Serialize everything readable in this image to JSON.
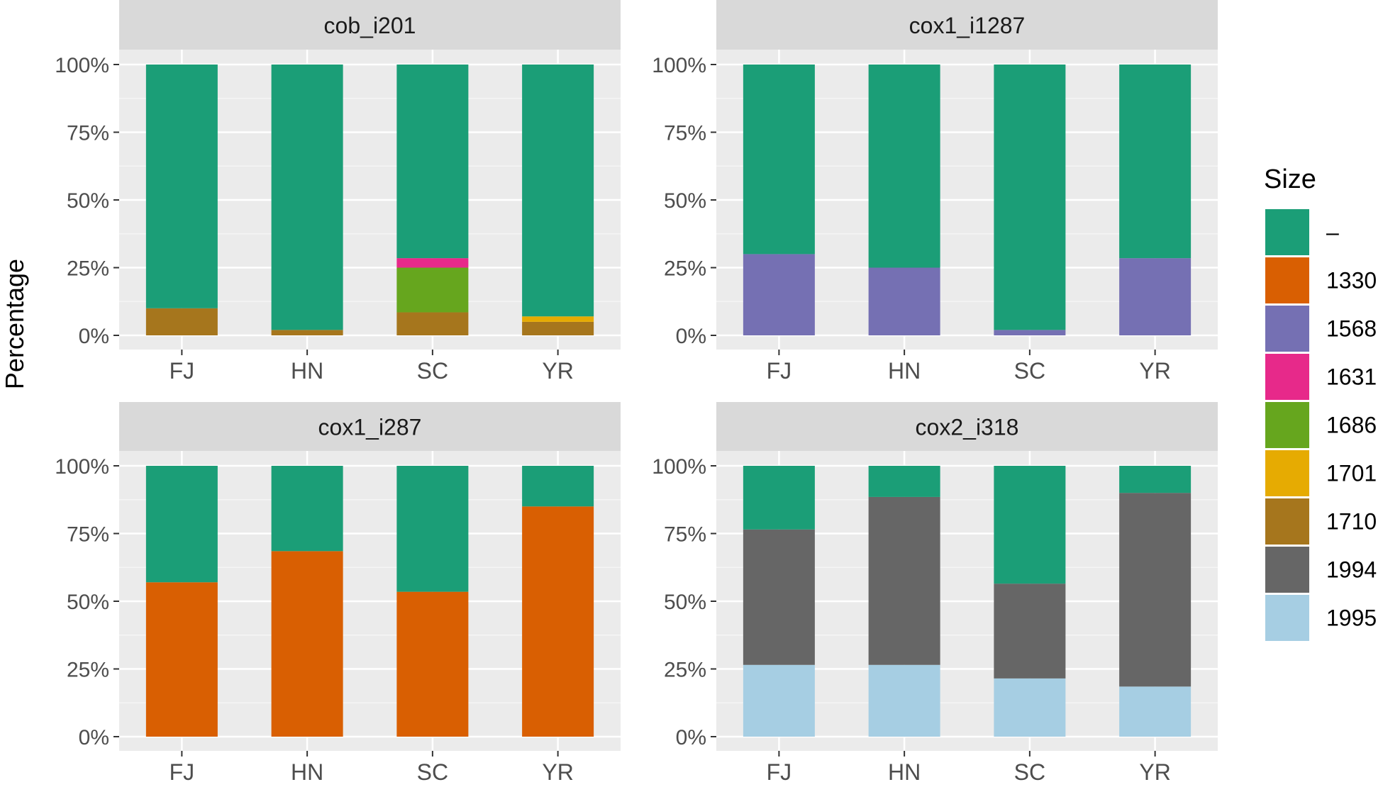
{
  "chart_data": {
    "type": "bar",
    "stacked": true,
    "ylabel": "Percentage",
    "y_ticks": [
      "0%",
      "25%",
      "50%",
      "75%",
      "100%"
    ],
    "y_tick_values": [
      0,
      25,
      50,
      75,
      100
    ],
    "ylim": [
      0,
      100
    ],
    "categories": [
      "FJ",
      "HN",
      "SC",
      "YR"
    ],
    "legend": {
      "title": "Size",
      "position": "right",
      "entries": [
        {
          "label": "–",
          "color": "#1b9e77"
        },
        {
          "label": "1330",
          "color": "#d95f02"
        },
        {
          "label": "1568",
          "color": "#7570b3"
        },
        {
          "label": "1631",
          "color": "#e7298a"
        },
        {
          "label": "1686",
          "color": "#66a61e"
        },
        {
          "label": "1701",
          "color": "#e6ab02"
        },
        {
          "label": "1710",
          "color": "#a6761d"
        },
        {
          "label": "1994",
          "color": "#666666"
        },
        {
          "label": "1995",
          "color": "#a6cee3"
        }
      ]
    },
    "panels": [
      {
        "title": "cob_i201",
        "bars": [
          {
            "category": "FJ",
            "segments": [
              {
                "size": "1710",
                "value": 10
              },
              {
                "size": "–",
                "value": 90
              }
            ]
          },
          {
            "category": "HN",
            "segments": [
              {
                "size": "1710",
                "value": 2
              },
              {
                "size": "–",
                "value": 98
              }
            ]
          },
          {
            "category": "SC",
            "segments": [
              {
                "size": "1710",
                "value": 8.5
              },
              {
                "size": "1686",
                "value": 16.5
              },
              {
                "size": "1631",
                "value": 3.5
              },
              {
                "size": "–",
                "value": 71.5
              }
            ]
          },
          {
            "category": "YR",
            "segments": [
              {
                "size": "1710",
                "value": 5
              },
              {
                "size": "1701",
                "value": 2
              },
              {
                "size": "–",
                "value": 93
              }
            ]
          }
        ]
      },
      {
        "title": "cox1_i1287",
        "bars": [
          {
            "category": "FJ",
            "segments": [
              {
                "size": "1568",
                "value": 30
              },
              {
                "size": "–",
                "value": 70
              }
            ]
          },
          {
            "category": "HN",
            "segments": [
              {
                "size": "1568",
                "value": 25
              },
              {
                "size": "–",
                "value": 75
              }
            ]
          },
          {
            "category": "SC",
            "segments": [
              {
                "size": "1568",
                "value": 2
              },
              {
                "size": "–",
                "value": 98
              }
            ]
          },
          {
            "category": "YR",
            "segments": [
              {
                "size": "1568",
                "value": 28.5
              },
              {
                "size": "–",
                "value": 71.5
              }
            ]
          }
        ]
      },
      {
        "title": "cox1_i287",
        "bars": [
          {
            "category": "FJ",
            "segments": [
              {
                "size": "1330",
                "value": 57
              },
              {
                "size": "–",
                "value": 43
              }
            ]
          },
          {
            "category": "HN",
            "segments": [
              {
                "size": "1330",
                "value": 68.5
              },
              {
                "size": "–",
                "value": 31.5
              }
            ]
          },
          {
            "category": "SC",
            "segments": [
              {
                "size": "1330",
                "value": 53.5
              },
              {
                "size": "–",
                "value": 46.5
              }
            ]
          },
          {
            "category": "YR",
            "segments": [
              {
                "size": "1330",
                "value": 85
              },
              {
                "size": "–",
                "value": 15
              }
            ]
          }
        ]
      },
      {
        "title": "cox2_i318",
        "bars": [
          {
            "category": "FJ",
            "segments": [
              {
                "size": "1995",
                "value": 26.5
              },
              {
                "size": "1994",
                "value": 50
              },
              {
                "size": "–",
                "value": 23.5
              }
            ]
          },
          {
            "category": "HN",
            "segments": [
              {
                "size": "1995",
                "value": 26.5
              },
              {
                "size": "1994",
                "value": 62
              },
              {
                "size": "–",
                "value": 11.5
              }
            ]
          },
          {
            "category": "SC",
            "segments": [
              {
                "size": "1995",
                "value": 21.5
              },
              {
                "size": "1994",
                "value": 35
              },
              {
                "size": "–",
                "value": 43.5
              }
            ]
          },
          {
            "category": "YR",
            "segments": [
              {
                "size": "1995",
                "value": 18.5
              },
              {
                "size": "1994",
                "value": 71.5
              },
              {
                "size": "–",
                "value": 10
              }
            ]
          }
        ]
      }
    ]
  }
}
